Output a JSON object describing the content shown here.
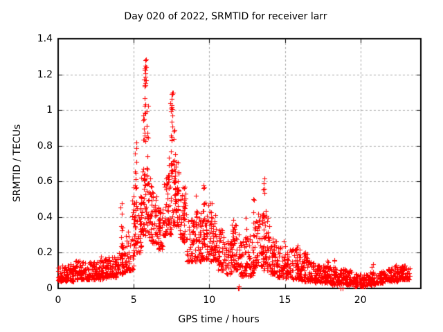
{
  "figure": {
    "title": "Day 020 of 2022, SRMTID for receiver larr",
    "x_axis_label": "GPS time / hours",
    "y_axis_label": "SRMTID / TECUs"
  },
  "chart_data": {
    "type": "scatter",
    "title": "Day 020 of 2022, SRMTID for receiver larr",
    "xlabel": "GPS time / hours",
    "ylabel": "SRMTID / TECUs",
    "xlim": [
      0,
      24
    ],
    "ylim": [
      0,
      1.4
    ],
    "xticks": {
      "values": [
        0,
        5,
        10,
        15,
        20
      ],
      "labels": [
        "0",
        "5",
        "10",
        "15",
        "20"
      ]
    },
    "yticks": {
      "values": [
        0,
        0.2,
        0.4,
        0.6,
        0.8,
        1.0,
        1.2,
        1.4
      ],
      "labels": [
        "0",
        "0.2",
        "0.4",
        "0.6",
        "0.8",
        "1",
        "1.2",
        "1.4"
      ]
    },
    "grid": {
      "show": true,
      "style": "dashed",
      "color": "#a8a8a8",
      "x_values": [
        5,
        10,
        15,
        20
      ],
      "y_values": [
        0.2,
        0.4,
        0.6,
        0.8,
        1.0,
        1.2
      ]
    },
    "legend": null,
    "marker": {
      "shape": "plus",
      "color": "#ff0000",
      "size": 7
    },
    "background": "#ffffff",
    "border_color": "#000000",
    "series_summary": {
      "description": "Dense scatter of SRMTID values vs GPS time. Quiet band ~0.05-0.15 TECU for hours 0-4, activity rises after hour 4 with maximum spike ~1.3 TECU at ~5.7 h, secondary peak ~1.1 TECU at ~7.5 h, decaying bursts of 0.3-0.6 TECU until ~14 h (local spike ~0.6 at 13.6 h), then decline to a quiet ~0.02-0.13 TECU band from 17 h to data end at ~23.2 h. Isolated zero-value points near 11.95 h and 18.7-18.8 h.",
      "bins": [
        [
          0.0,
          0.04,
          0.13,
          45
        ],
        [
          0.5,
          0.04,
          0.14,
          45
        ],
        [
          1.0,
          0.05,
          0.16,
          45
        ],
        [
          1.5,
          0.05,
          0.15,
          45
        ],
        [
          2.0,
          0.05,
          0.15,
          45
        ],
        [
          2.5,
          0.05,
          0.18,
          45
        ],
        [
          3.0,
          0.06,
          0.19,
          45
        ],
        [
          3.5,
          0.06,
          0.18,
          45
        ],
        [
          4.0,
          0.08,
          0.26,
          45
        ],
        [
          4.5,
          0.1,
          0.32,
          45
        ],
        [
          5.0,
          0.2,
          0.52,
          45
        ],
        [
          5.5,
          0.3,
          0.68,
          45
        ],
        [
          6.0,
          0.25,
          0.56,
          45
        ],
        [
          6.5,
          0.22,
          0.46,
          45
        ],
        [
          7.0,
          0.3,
          0.62,
          45
        ],
        [
          7.5,
          0.35,
          0.72,
          45
        ],
        [
          8.0,
          0.25,
          0.6,
          45
        ],
        [
          8.5,
          0.15,
          0.4,
          45
        ],
        [
          9.0,
          0.15,
          0.46,
          45
        ],
        [
          9.5,
          0.16,
          0.48,
          45
        ],
        [
          10.0,
          0.15,
          0.42,
          45
        ],
        [
          10.5,
          0.1,
          0.34,
          45
        ],
        [
          11.0,
          0.08,
          0.28,
          45
        ],
        [
          11.5,
          0.1,
          0.36,
          45
        ],
        [
          12.0,
          0.07,
          0.3,
          45
        ],
        [
          12.5,
          0.07,
          0.32,
          45
        ],
        [
          13.0,
          0.12,
          0.42,
          45
        ],
        [
          13.5,
          0.1,
          0.42,
          45
        ],
        [
          14.0,
          0.08,
          0.28,
          45
        ],
        [
          14.5,
          0.06,
          0.24,
          45
        ],
        [
          15.0,
          0.06,
          0.22,
          45
        ],
        [
          15.5,
          0.05,
          0.22,
          45
        ],
        [
          16.0,
          0.04,
          0.2,
          45
        ],
        [
          16.5,
          0.04,
          0.16,
          45
        ],
        [
          17.0,
          0.03,
          0.14,
          45
        ],
        [
          17.5,
          0.03,
          0.13,
          45
        ],
        [
          18.0,
          0.02,
          0.12,
          45
        ],
        [
          18.5,
          0.02,
          0.11,
          45
        ],
        [
          19.0,
          0.02,
          0.1,
          45
        ],
        [
          19.5,
          0.01,
          0.08,
          45
        ],
        [
          20.0,
          0.01,
          0.08,
          45
        ],
        [
          20.5,
          0.02,
          0.09,
          45
        ],
        [
          21.0,
          0.03,
          0.1,
          45
        ],
        [
          21.5,
          0.04,
          0.11,
          45
        ],
        [
          22.0,
          0.04,
          0.12,
          45
        ],
        [
          22.5,
          0.05,
          0.13,
          45
        ],
        [
          23.0,
          0.05,
          0.12,
          20,
          0.3
        ]
      ],
      "spikes": [
        [
          4.2,
          0.15,
          0.48,
          12
        ],
        [
          4.95,
          0.2,
          0.57,
          12
        ],
        [
          5.15,
          0.3,
          0.88,
          16
        ],
        [
          5.45,
          0.3,
          0.62,
          12
        ],
        [
          5.7,
          0.5,
          1.3,
          26
        ],
        [
          5.78,
          1.12,
          1.3,
          12
        ],
        [
          5.9,
          0.55,
          1.05,
          12
        ],
        [
          6.15,
          0.25,
          0.63,
          12
        ],
        [
          6.7,
          0.25,
          0.5,
          10
        ],
        [
          7.3,
          0.35,
          0.75,
          12
        ],
        [
          7.5,
          0.6,
          1.1,
          20
        ],
        [
          7.55,
          1.0,
          1.1,
          6
        ],
        [
          7.7,
          0.45,
          0.95,
          12
        ],
        [
          7.9,
          0.35,
          0.78,
          10
        ],
        [
          8.3,
          0.25,
          0.58,
          10
        ],
        [
          9.15,
          0.2,
          0.52,
          10
        ],
        [
          9.65,
          0.25,
          0.59,
          12
        ],
        [
          10.1,
          0.2,
          0.48,
          10
        ],
        [
          10.4,
          0.18,
          0.42,
          8
        ],
        [
          11.55,
          0.15,
          0.43,
          8
        ],
        [
          12.45,
          0.12,
          0.4,
          8
        ],
        [
          12.95,
          0.1,
          0.5,
          8
        ],
        [
          13.6,
          0.2,
          0.62,
          14
        ],
        [
          13.75,
          0.15,
          0.45,
          8
        ],
        [
          14.2,
          0.1,
          0.32,
          6
        ],
        [
          15.0,
          0.08,
          0.28,
          6
        ],
        [
          15.8,
          0.08,
          0.28,
          8
        ],
        [
          16.3,
          0.05,
          0.24,
          8
        ],
        [
          17.85,
          0.04,
          0.18,
          6
        ],
        [
          18.3,
          0.03,
          0.16,
          6
        ],
        [
          20.8,
          0.04,
          0.14,
          5
        ],
        [
          22.3,
          0.05,
          0.15,
          5
        ]
      ],
      "outliers": [
        [
          11.93,
          0.0
        ],
        [
          11.95,
          0.01
        ],
        [
          11.97,
          0.0
        ],
        [
          18.7,
          0.0
        ],
        [
          18.83,
          0.0
        ]
      ],
      "max_point": [
        5.7,
        1.3
      ],
      "data_end_hour": 23.2
    }
  }
}
